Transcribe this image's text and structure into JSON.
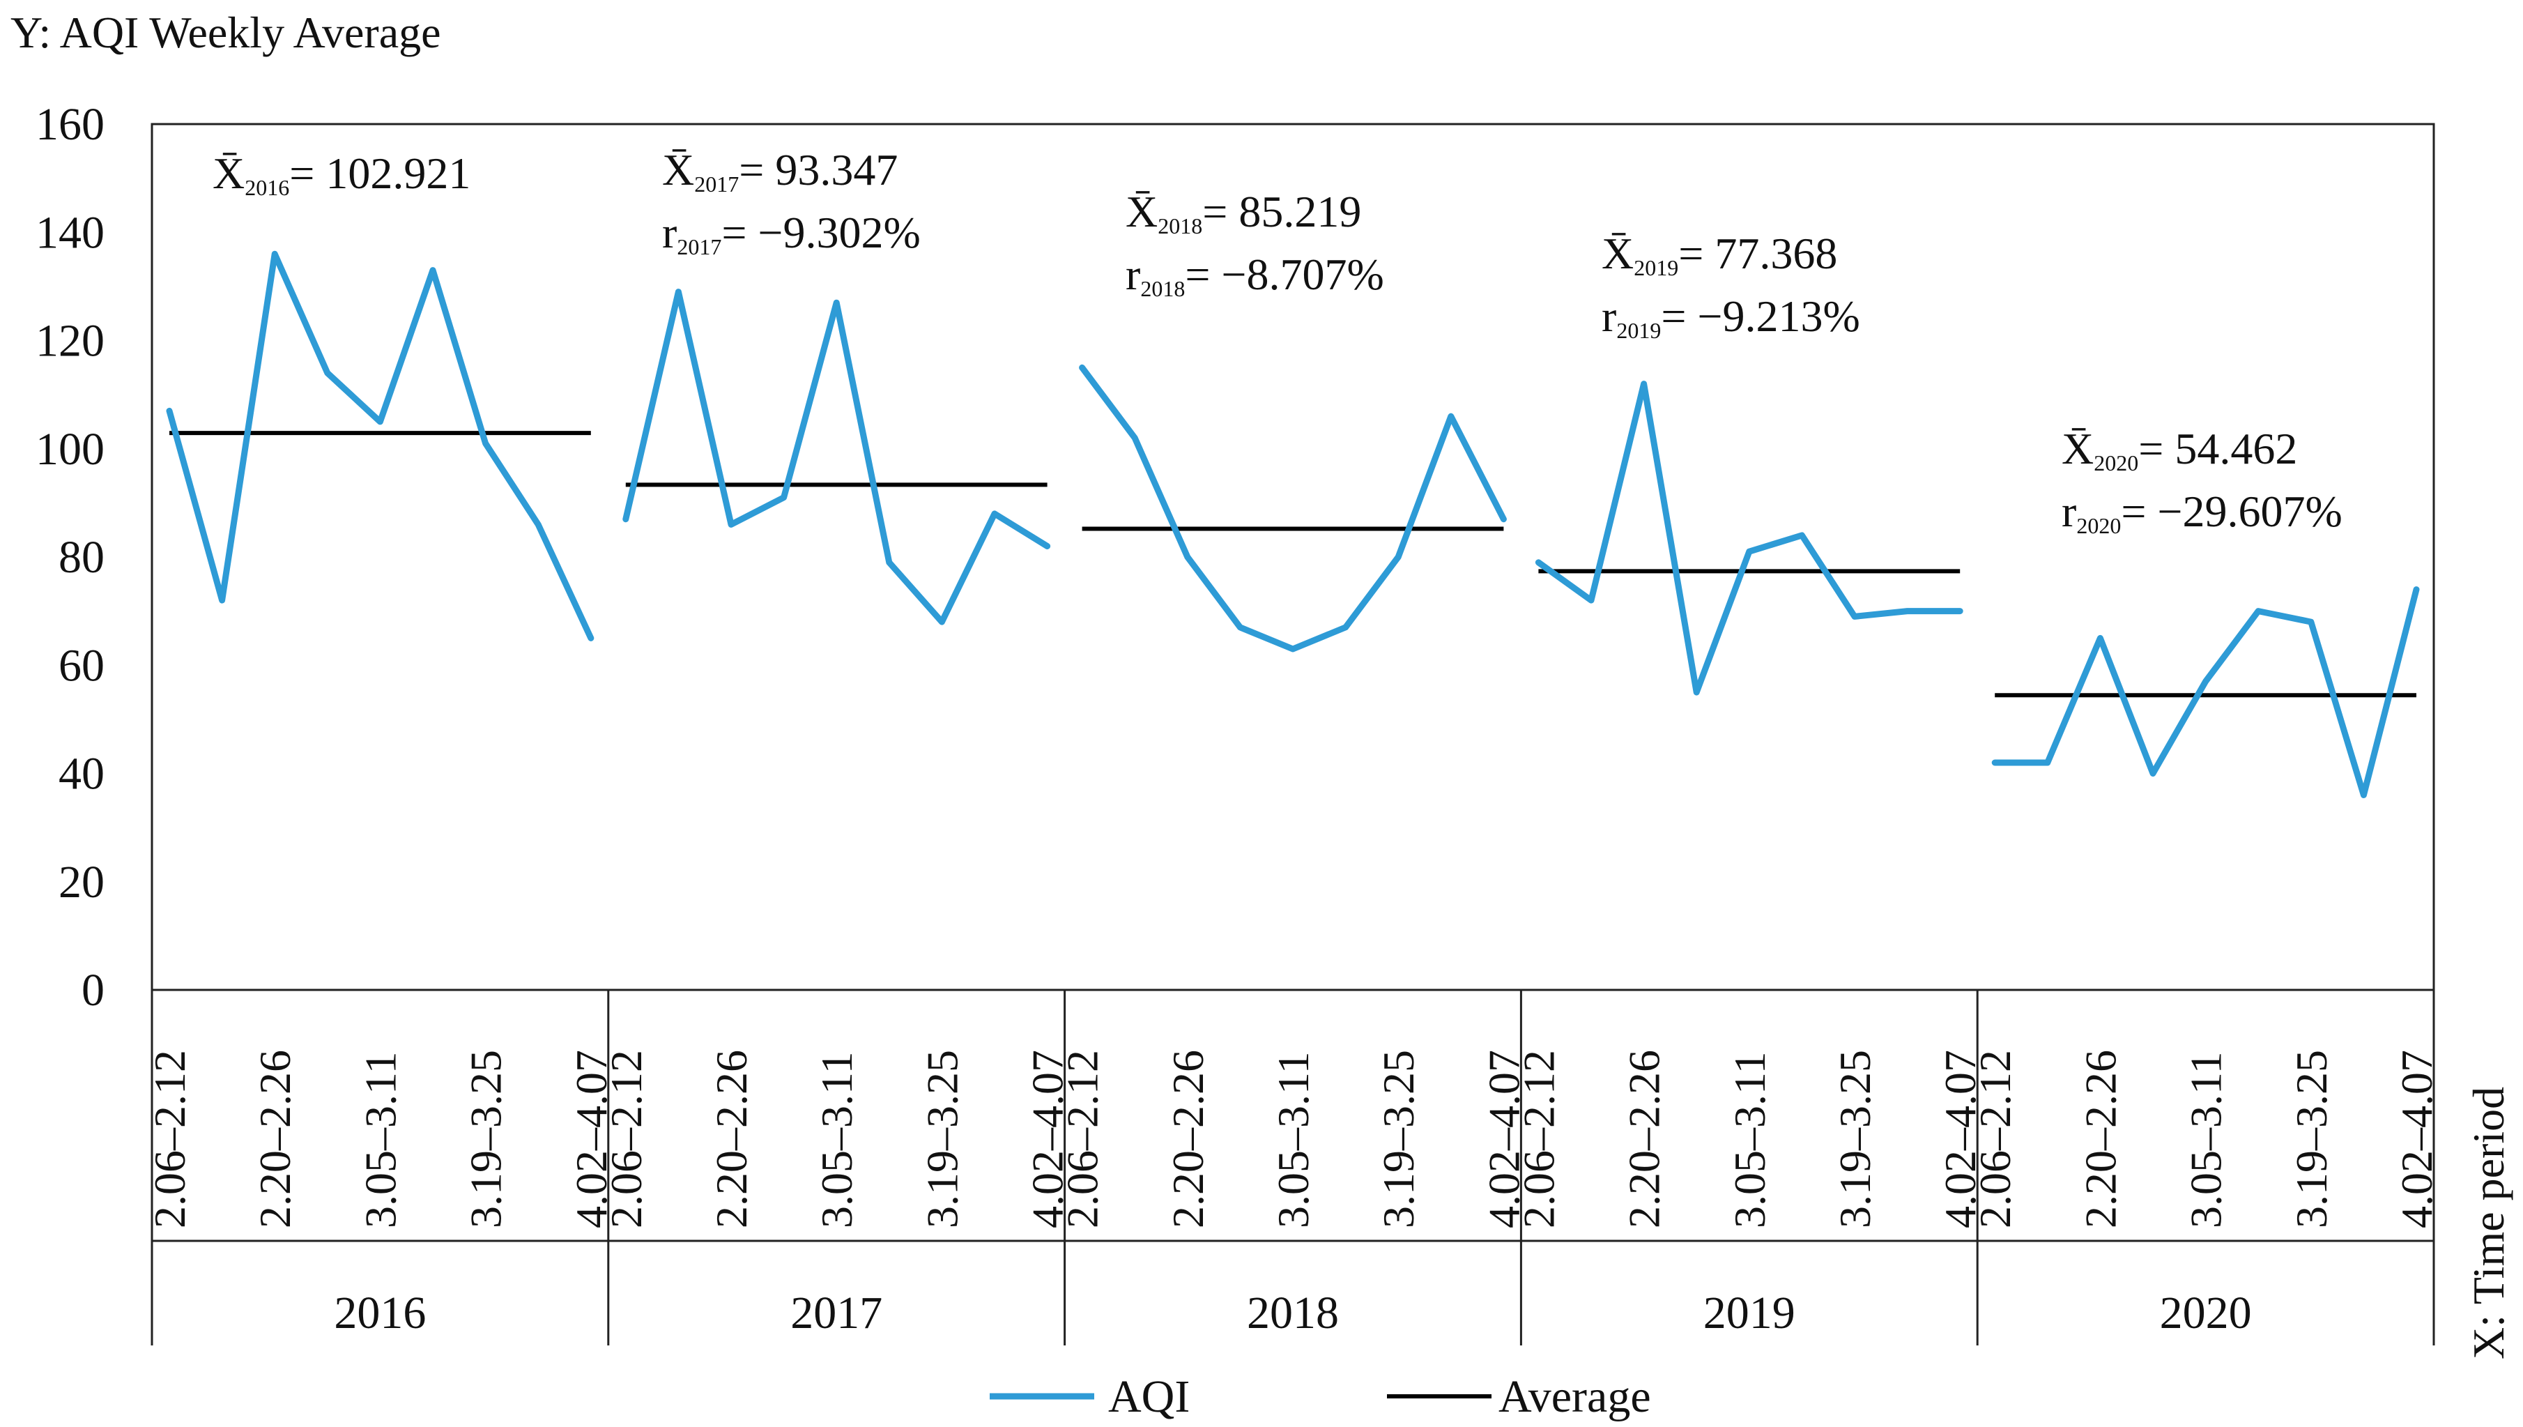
{
  "chart_data": {
    "type": "line",
    "ylabel": "Y: AQI Weekly Average",
    "xlabel": "X: Time period",
    "ylim": [
      0,
      160
    ],
    "yticks": [
      0,
      20,
      40,
      60,
      80,
      100,
      120,
      140,
      160
    ],
    "categories": [
      "2.06–2.12",
      "2.20–2.26",
      "3.05–3.11",
      "3.19–3.25",
      "4.02–4.07"
    ],
    "points_per_year": 9,
    "groups": [
      {
        "year": "2016",
        "aqi": [
          107,
          72,
          136,
          114,
          105,
          133,
          101,
          86,
          65
        ],
        "average": 102.921,
        "mean_label": "X̄",
        "mean_sub": "2016",
        "mean_text": "= 102.921"
      },
      {
        "year": "2017",
        "aqi": [
          87,
          129,
          86,
          91,
          127,
          79,
          68,
          88,
          82
        ],
        "average": 93.347,
        "mean_label": "X̄",
        "mean_sub": "2017",
        "mean_text": "= 93.347",
        "r_label": "r",
        "r_sub": "2017",
        "r_text": "= −9.302%"
      },
      {
        "year": "2018",
        "aqi": [
          115,
          102,
          80,
          67,
          63,
          67,
          80,
          106,
          87
        ],
        "average": 85.219,
        "mean_label": "X̄",
        "mean_sub": "2018",
        "mean_text": "= 85.219",
        "r_label": "r",
        "r_sub": "2018",
        "r_text": "= −8.707%"
      },
      {
        "year": "2019",
        "aqi": [
          79,
          72,
          112,
          55,
          81,
          84,
          69,
          70,
          70
        ],
        "average": 77.368,
        "mean_label": "X̄",
        "mean_sub": "2019",
        "mean_text": "= 77.368",
        "r_label": "r",
        "r_sub": "2019",
        "r_text": "= −9.213%"
      },
      {
        "year": "2020",
        "aqi": [
          42,
          42,
          65,
          40,
          57,
          70,
          68,
          36,
          74
        ],
        "average": 54.462,
        "mean_label": "X̄",
        "mean_sub": "2020",
        "mean_text": "= 54.462",
        "r_label": "r",
        "r_sub": "2020",
        "r_text": "= −29.607%"
      }
    ],
    "legend": [
      {
        "name": "AQI",
        "color": "#2E9BD6"
      },
      {
        "name": "Average",
        "color": "#000000"
      }
    ]
  }
}
